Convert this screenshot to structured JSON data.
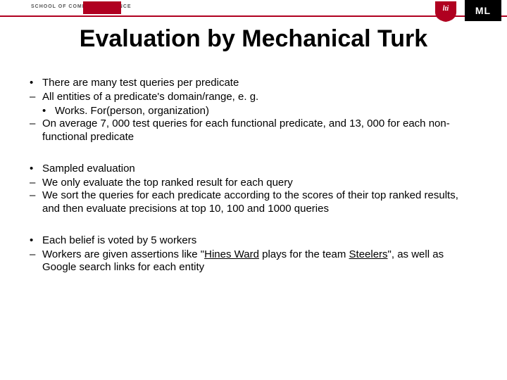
{
  "header": {
    "scs_label": "SCHOOL OF COMPUTER SCIENCE",
    "ml_label": "ML"
  },
  "title": "Evaluation by Mechanical Turk",
  "bullets": [
    {
      "text": "There are many test queries per predicate",
      "sub": [
        {
          "text": "All entities of a predicate's domain/range,  e. g.",
          "sub": [
            {
              "text": "Works. For(person, organization)"
            }
          ]
        },
        {
          "text": "On average 7, 000 test queries for each functional predicate, and 13, 000 for each non-functional predicate"
        }
      ]
    },
    {
      "text": "Sampled evaluation",
      "sub": [
        {
          "text": "We only evaluate the top ranked result for each query"
        },
        {
          "text": "We sort the queries for each predicate according to the scores of their top ranked results, and then evaluate precisions at top 10, 100 and 1000 queries"
        }
      ]
    },
    {
      "text": "Each belief is voted by 5 workers",
      "sub": [
        {
          "html": "Workers are given assertions like \"<span class=\"u\">Hines Ward</span> plays for the team <span class=\"u\">Steelers</span>\", as well as Google search links for each entity"
        }
      ]
    }
  ]
}
